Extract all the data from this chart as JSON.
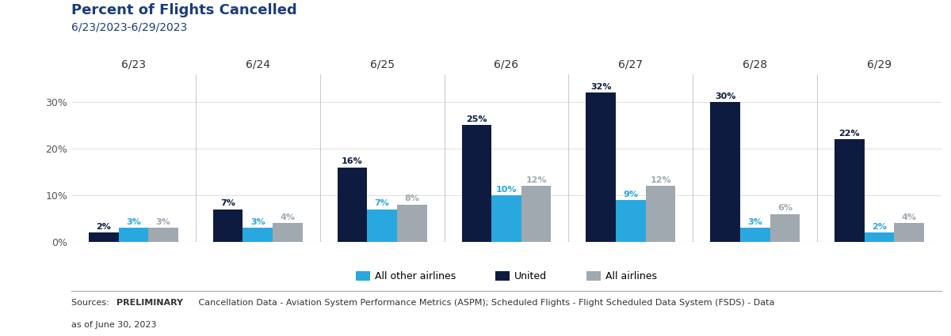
{
  "title": "Percent of Flights Cancelled",
  "subtitle": "6/23/2023-6/29/2023",
  "dates": [
    "6/23",
    "6/24",
    "6/25",
    "6/26",
    "6/27",
    "6/28",
    "6/29"
  ],
  "united": [
    2,
    7,
    16,
    25,
    32,
    30,
    22
  ],
  "other_airlines": [
    3,
    3,
    7,
    10,
    9,
    3,
    2
  ],
  "all_airlines": [
    3,
    4,
    8,
    12,
    12,
    6,
    4
  ],
  "color_united": "#0d1b40",
  "color_other": "#29a8e0",
  "color_all": "#a0a8b0",
  "ylim": [
    0,
    36
  ],
  "yticks": [
    0,
    10,
    20,
    30
  ],
  "ytick_labels": [
    "0%",
    "10%",
    "20%",
    "30%"
  ],
  "legend_labels": [
    "All other airlines",
    "United",
    "All airlines"
  ],
  "source_bold": "PRELIMINARY",
  "source_text_before": "Sources: ",
  "source_text_after": " Cancellation Data - Aviation System Performance Metrics (ASPM); Scheduled Flights - Flight Scheduled Data System (FSDS) - Data\nas of June 30, 2023",
  "title_color": "#1a3d7c",
  "subtitle_color": "#1a3d7c",
  "bar_label_color_united": "#0d1b40",
  "bar_label_color_other": "#29a8e0",
  "bar_label_color_all": "#a0a8b0",
  "background_color": "#ffffff",
  "bar_width": 0.24
}
